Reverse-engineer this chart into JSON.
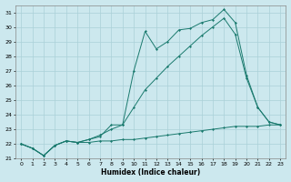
{
  "xlabel": "Humidex (Indice chaleur)",
  "bg_color": "#cce8ee",
  "grid_color": "#aad0d8",
  "line_color": "#1a7a6e",
  "xlim": [
    -0.5,
    23.5
  ],
  "ylim": [
    21,
    31.5
  ],
  "yticks": [
    21,
    22,
    23,
    24,
    25,
    26,
    27,
    28,
    29,
    30,
    31
  ],
  "xticks": [
    0,
    1,
    2,
    3,
    4,
    5,
    6,
    7,
    8,
    9,
    10,
    11,
    12,
    13,
    14,
    15,
    16,
    17,
    18,
    19,
    20,
    21,
    22,
    23
  ],
  "series1": {
    "x": [
      0,
      1,
      2,
      3,
      4,
      5,
      6,
      7,
      8,
      9,
      10,
      11,
      12,
      13,
      14,
      15,
      16,
      17,
      18,
      19,
      20,
      21,
      22,
      23
    ],
    "y": [
      22.0,
      21.7,
      21.2,
      21.9,
      22.2,
      22.1,
      22.1,
      22.2,
      22.2,
      22.3,
      22.3,
      22.4,
      22.5,
      22.6,
      22.7,
      22.8,
      22.9,
      23.0,
      23.1,
      23.2,
      23.2,
      23.2,
      23.3,
      23.3
    ]
  },
  "series2": {
    "x": [
      0,
      1,
      2,
      3,
      4,
      5,
      6,
      7,
      8,
      9,
      10,
      11,
      12,
      13,
      14,
      15,
      16,
      17,
      18,
      19,
      20,
      21,
      22,
      23
    ],
    "y": [
      22.0,
      21.7,
      21.2,
      21.9,
      22.2,
      22.1,
      22.3,
      22.6,
      23.0,
      23.3,
      24.5,
      25.7,
      26.5,
      27.3,
      28.0,
      28.7,
      29.4,
      30.0,
      30.6,
      29.5,
      26.5,
      24.5,
      23.5,
      23.3
    ]
  },
  "series3": {
    "x": [
      0,
      1,
      2,
      3,
      4,
      5,
      6,
      7,
      8,
      9,
      10,
      11,
      12,
      13,
      14,
      15,
      16,
      17,
      18,
      19,
      20,
      21,
      22,
      23
    ],
    "y": [
      22.0,
      21.7,
      21.2,
      21.9,
      22.2,
      22.1,
      22.3,
      22.5,
      23.3,
      23.3,
      27.0,
      29.7,
      28.5,
      29.0,
      29.8,
      29.9,
      30.3,
      30.5,
      31.2,
      30.3,
      26.7,
      24.5,
      23.5,
      23.3
    ]
  }
}
